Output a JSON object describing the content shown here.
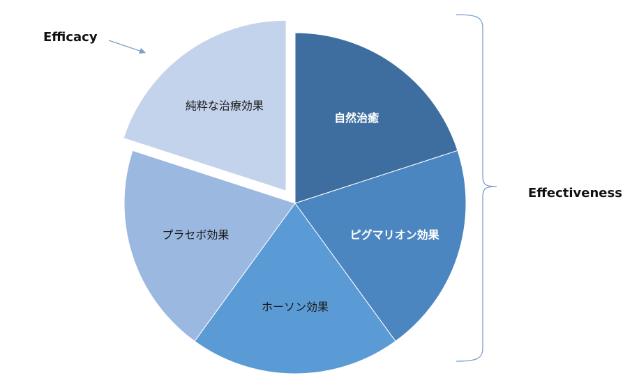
{
  "chart_data": {
    "type": "pie",
    "slices": [
      {
        "label": "自然治癒",
        "value": 20,
        "color": "#3e6ea0",
        "text_color": "#ffffff",
        "bold": true
      },
      {
        "label": "ピグマリオン効果",
        "value": 20,
        "color": "#4c86c0",
        "text_color": "#ffffff",
        "bold": true
      },
      {
        "label": "ホーソン効果",
        "value": 20,
        "color": "#5b9bd5",
        "text_color": "#1a1a1a",
        "bold": false
      },
      {
        "label": "プラセボ効果",
        "value": 20,
        "color": "#9ab8e0",
        "text_color": "#1a1a1a",
        "bold": false
      },
      {
        "label": "純粋な治療効果",
        "value": 20,
        "color": "#c3d3ec",
        "text_color": "#1a1a1a",
        "bold": false,
        "exploded": true
      }
    ],
    "annotations": {
      "efficacy": "Efficacy",
      "effectiveness": "Effectiveness"
    },
    "accent_line_color": "#7a9fc9"
  }
}
